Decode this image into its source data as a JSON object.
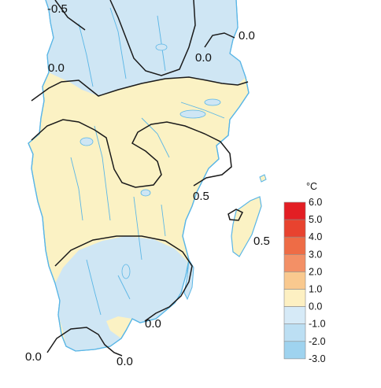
{
  "map": {
    "contour_labels": [
      "-0.5",
      "0.0",
      "0.0",
      "0.0",
      "0.5",
      "0.5",
      "0.0",
      "0.0",
      "0.0"
    ],
    "colors": {
      "land_positive": "#fbf2c4",
      "land_negative": "#cfe6f4",
      "coastline": "#5ab6e6",
      "contour": "#1a1a1a"
    }
  },
  "legend": {
    "unit": "°C",
    "labels": [
      "6.0",
      "5.0",
      "4.0",
      "3.0",
      "2.0",
      "1.0",
      "0.0",
      "-1.0",
      "-2.0",
      "-3.0"
    ],
    "colors": [
      "#e31e24",
      "#e8432f",
      "#ee6c46",
      "#f39066",
      "#f9c98f",
      "#fdf0c2",
      "#d6eaf7",
      "#bcdff3",
      "#9fd3ef"
    ]
  }
}
